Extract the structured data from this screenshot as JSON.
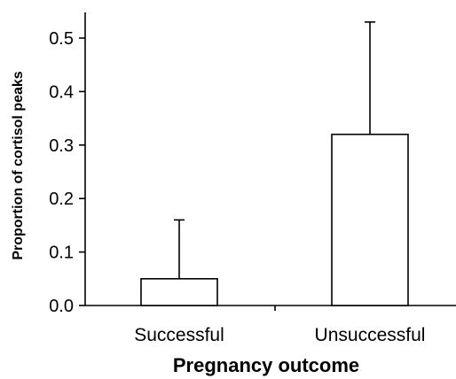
{
  "chart_data": {
    "type": "bar",
    "title": "",
    "xlabel": "Pregnancy outcome",
    "ylabel": "Proportion of cortisol peaks",
    "categories": [
      "Successful",
      "Unsuccessful"
    ],
    "values": [
      0.05,
      0.32
    ],
    "error_upper": [
      0.16,
      0.53
    ],
    "ylim": [
      0,
      0.55
    ],
    "yticks": [
      "0.0",
      "0.1",
      "0.2",
      "0.3",
      "0.4",
      "0.5"
    ],
    "grid": false,
    "bar_fill": "#ffffff",
    "bar_stroke": "#000000"
  }
}
